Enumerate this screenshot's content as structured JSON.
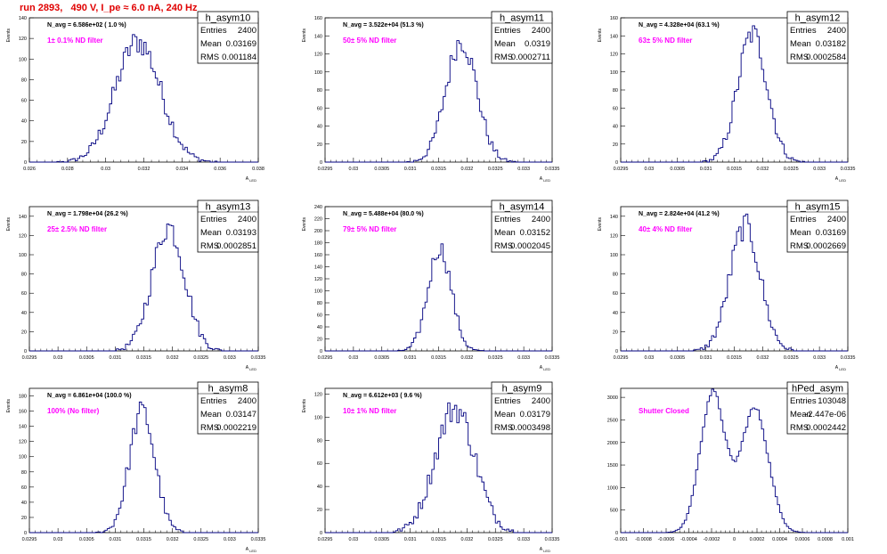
{
  "title": "run 2893,   490 V, I_pe ≈ 6.0 nA, 240 Hz",
  "colors": {
    "title": "#e00000",
    "hist": "#000080",
    "filter_label": "#ff00ff"
  },
  "chart_data": [
    {
      "type": "histogram",
      "name": "h_asym10",
      "navg": "N_avg = 6.586e+02 ( 1.0 %)",
      "filter": "1± 0.1% ND filter",
      "stats": [
        [
          "Entries",
          "2400"
        ],
        [
          "Mean",
          "0.03169"
        ],
        [
          "RMS",
          "0.001184"
        ]
      ],
      "xlabel": "A_LED",
      "ylabel": "Events",
      "xlim": [
        0.026,
        0.038
      ],
      "ylim": [
        0,
        140
      ],
      "xticks": [
        0.026,
        0.028,
        0.03,
        0.032,
        0.034,
        0.036,
        0.038
      ],
      "xticklabels": [
        "0.026",
        "0.028",
        "0.03",
        "0.032",
        "0.034",
        "0.036",
        "0.038"
      ],
      "yticks": [
        0,
        20,
        40,
        60,
        80,
        100,
        120,
        140
      ],
      "mean": 0.03169,
      "rms": 0.001184,
      "entries": 2400,
      "nbins": 100,
      "peak": 130,
      "bimodal": false
    },
    {
      "type": "histogram",
      "name": "h_asym11",
      "navg": "N_avg = 3.522e+04 (51.3 %)",
      "filter": "50± 5% ND filter",
      "stats": [
        [
          "Entries",
          "2400"
        ],
        [
          "Mean",
          "0.0319"
        ],
        [
          "RMS",
          "0.0002711"
        ]
      ],
      "xlabel": "A_LED",
      "ylabel": "Events",
      "xlim": [
        0.0295,
        0.0335
      ],
      "ylim": [
        0,
        160
      ],
      "xticks": [
        0.0295,
        0.03,
        0.0305,
        0.031,
        0.0315,
        0.032,
        0.0325,
        0.033,
        0.0335
      ],
      "xticklabels": [
        "0.0295",
        "0.03",
        "0.0305",
        "0.031",
        "0.0315",
        "0.032",
        "0.0325",
        "0.033",
        "0.0335"
      ],
      "yticks": [
        0,
        20,
        40,
        60,
        80,
        100,
        120,
        140,
        160
      ],
      "mean": 0.0319,
      "rms": 0.0002711,
      "entries": 2400,
      "nbins": 100,
      "peak": 150,
      "bimodal": false
    },
    {
      "type": "histogram",
      "name": "h_asym12",
      "navg": "N_avg = 4.328e+04 (63.1 %)",
      "filter": "63± 5% ND filter",
      "stats": [
        [
          "Entries",
          "2400"
        ],
        [
          "Mean",
          "0.03182"
        ],
        [
          "RMS",
          "0.0002584"
        ]
      ],
      "xlabel": "A_LED",
      "ylabel": "Events",
      "xlim": [
        0.0295,
        0.0335
      ],
      "ylim": [
        0,
        160
      ],
      "xticks": [
        0.0295,
        0.03,
        0.0305,
        0.031,
        0.0315,
        0.032,
        0.0325,
        0.033,
        0.0335
      ],
      "xticklabels": [
        "0.0295",
        "0.03",
        "0.0305",
        "0.031",
        "0.0315",
        "0.032",
        "0.0325",
        "0.033",
        "0.0335"
      ],
      "yticks": [
        0,
        20,
        40,
        60,
        80,
        100,
        120,
        140,
        160
      ],
      "mean": 0.03182,
      "rms": 0.0002584,
      "entries": 2400,
      "nbins": 100,
      "peak": 158,
      "bimodal": false
    },
    {
      "type": "histogram",
      "name": "h_asym13",
      "navg": "N_avg = 1.798e+04 (26.2 %)",
      "filter": "25± 2.5% ND filter",
      "stats": [
        [
          "Entries",
          "2400"
        ],
        [
          "Mean",
          "0.03193"
        ],
        [
          "RMS",
          "0.0002851"
        ]
      ],
      "xlabel": "A_LED",
      "ylabel": "Events",
      "xlim": [
        0.0295,
        0.0335
      ],
      "ylim": [
        0,
        150
      ],
      "xticks": [
        0.0295,
        0.03,
        0.0305,
        0.031,
        0.0315,
        0.032,
        0.0325,
        0.033,
        0.0335
      ],
      "xticklabels": [
        "0.0295",
        "0.03",
        "0.0305",
        "0.031",
        "0.0315",
        "0.032",
        "0.0325",
        "0.033",
        "0.0335"
      ],
      "yticks": [
        0,
        20,
        40,
        60,
        80,
        100,
        120,
        140
      ],
      "mean": 0.03193,
      "rms": 0.0002851,
      "entries": 2400,
      "nbins": 100,
      "peak": 144,
      "bimodal": false
    },
    {
      "type": "histogram",
      "name": "h_asym14",
      "navg": "N_avg = 5.488e+04 (80.0 %)",
      "filter": "79± 5% ND filter",
      "stats": [
        [
          "Entries",
          "2400"
        ],
        [
          "Mean",
          "0.03152"
        ],
        [
          "RMS",
          "0.0002045"
        ]
      ],
      "xlabel": "A_LED",
      "ylabel": "Events",
      "xlim": [
        0.0295,
        0.0335
      ],
      "ylim": [
        0,
        240
      ],
      "xticks": [
        0.0295,
        0.03,
        0.0305,
        0.031,
        0.0315,
        0.032,
        0.0325,
        0.033,
        0.0335
      ],
      "xticklabels": [
        "0.0295",
        "0.03",
        "0.0305",
        "0.031",
        "0.0315",
        "0.032",
        "0.0325",
        "0.033",
        "0.0335"
      ],
      "yticks": [
        0,
        20,
        40,
        60,
        80,
        100,
        120,
        140,
        160,
        180,
        200,
        220,
        240
      ],
      "mean": 0.03152,
      "rms": 0.0002045,
      "entries": 2400,
      "nbins": 100,
      "peak": 190,
      "bimodal": false
    },
    {
      "type": "histogram",
      "name": "h_asym15",
      "navg": "N_avg = 2.824e+04 (41.2 %)",
      "filter": "40± 4% ND filter",
      "stats": [
        [
          "Entries",
          "2400"
        ],
        [
          "Mean",
          "0.03169"
        ],
        [
          "RMS",
          "0.0002669"
        ]
      ],
      "xlabel": "A_LED",
      "ylabel": "Events",
      "xlim": [
        0.0295,
        0.0335
      ],
      "ylim": [
        0,
        150
      ],
      "xticks": [
        0.0295,
        0.03,
        0.0305,
        0.031,
        0.0315,
        0.032,
        0.0325,
        0.033,
        0.0335
      ],
      "xticklabels": [
        "0.0295",
        "0.03",
        "0.0305",
        "0.031",
        "0.0315",
        "0.032",
        "0.0325",
        "0.033",
        "0.0335"
      ],
      "yticks": [
        0,
        20,
        40,
        60,
        80,
        100,
        120,
        140
      ],
      "mean": 0.03169,
      "rms": 0.0002669,
      "entries": 2400,
      "nbins": 100,
      "peak": 144,
      "bimodal": false
    },
    {
      "type": "histogram",
      "name": "h_asym8",
      "navg": "N_avg = 6.861e+04 (100.0 %)",
      "filter": "100% (No filter)",
      "stats": [
        [
          "Entries",
          "2400"
        ],
        [
          "Mean",
          "0.03147"
        ],
        [
          "RMS",
          "0.0002219"
        ]
      ],
      "xlabel": "A_LED",
      "ylabel": "Events",
      "xlim": [
        0.0295,
        0.0335
      ],
      "ylim": [
        0,
        190
      ],
      "xticks": [
        0.0295,
        0.03,
        0.0305,
        0.031,
        0.0315,
        0.032,
        0.0325,
        0.033,
        0.0335
      ],
      "xticklabels": [
        "0.0295",
        "0.03",
        "0.0305",
        "0.031",
        "0.0315",
        "0.032",
        "0.0325",
        "0.033",
        "0.0335"
      ],
      "yticks": [
        0,
        20,
        40,
        60,
        80,
        100,
        120,
        140,
        160,
        180
      ],
      "mean": 0.03147,
      "rms": 0.0002219,
      "entries": 2400,
      "nbins": 100,
      "peak": 178,
      "bimodal": false
    },
    {
      "type": "histogram",
      "name": "h_asym9",
      "navg": "N_avg = 6.612e+03 ( 9.6 %)",
      "filter": "10± 1% ND filter",
      "stats": [
        [
          "Entries",
          "2400"
        ],
        [
          "Mean",
          "0.03179"
        ],
        [
          "RMS",
          "0.0003498"
        ]
      ],
      "xlabel": "A_LED",
      "ylabel": "Events",
      "xlim": [
        0.0295,
        0.0335
      ],
      "ylim": [
        0,
        125
      ],
      "xticks": [
        0.0295,
        0.03,
        0.0305,
        0.031,
        0.0315,
        0.032,
        0.0325,
        0.033,
        0.0335
      ],
      "xticklabels": [
        "0.0295",
        "0.03",
        "0.0305",
        "0.031",
        "0.0315",
        "0.032",
        "0.0325",
        "0.033",
        "0.0335"
      ],
      "yticks": [
        0,
        20,
        40,
        60,
        80,
        100,
        120
      ],
      "mean": 0.03179,
      "rms": 0.0003498,
      "entries": 2400,
      "nbins": 100,
      "peak": 120,
      "bimodal": false
    },
    {
      "type": "histogram",
      "name": "hPed_asym",
      "navg": "",
      "filter": "Shutter Closed",
      "stats": [
        [
          "Entries",
          "103048"
        ],
        [
          "Mean",
          "-2.447e-06"
        ],
        [
          "RMS",
          "0.0002442"
        ]
      ],
      "xlabel": "",
      "ylabel": "",
      "xlim": [
        -0.001,
        0.001
      ],
      "ylim": [
        0,
        3200
      ],
      "xticks": [
        -0.001,
        -0.0008,
        -0.0006,
        -0.0004,
        -0.0002,
        0,
        0.0002,
        0.0004,
        0.0006,
        0.0008,
        0.001
      ],
      "xticklabels": [
        "-0.001",
        "-0.0008",
        "-0.0006",
        "-0.0004",
        "-0.0002",
        "0",
        "0.0002",
        "0.0004",
        "0.0006",
        "0.0008",
        "0.001"
      ],
      "yticks": [
        0,
        500,
        1000,
        1500,
        2000,
        2500,
        3000
      ],
      "mean": -2.4e-06,
      "rms": 0.0002442,
      "entries": 103048,
      "nbins": 100,
      "peak": 3100,
      "bimodal": true,
      "peaks": [
        {
          "x": -0.00019,
          "height": 3100,
          "width": 0.00011
        },
        {
          "x": 0.00018,
          "height": 2750,
          "width": 0.00012
        }
      ]
    }
  ]
}
